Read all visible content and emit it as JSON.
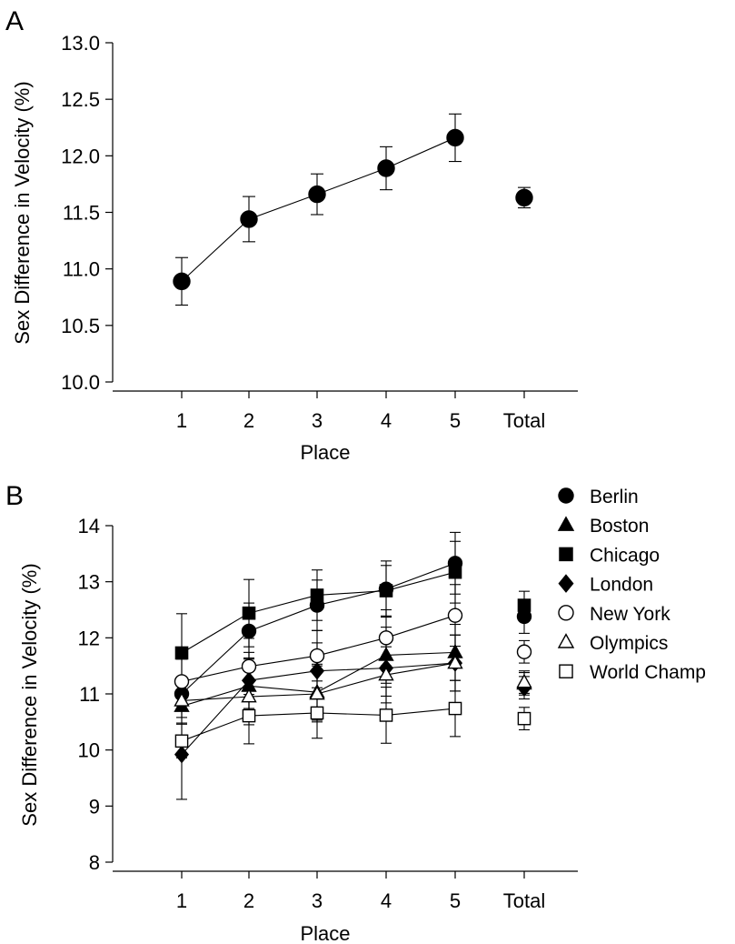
{
  "chart_data": [
    {
      "panel": "A",
      "type": "scatter",
      "xlabel": "Place",
      "ylabel": "Sex Difference in Velocity (%)",
      "categories": [
        "1",
        "2",
        "3",
        "4",
        "5",
        "Total"
      ],
      "ylim": [
        10.0,
        13.0
      ],
      "yticks": [
        "10.0",
        "10.5",
        "11.0",
        "11.5",
        "12.0",
        "12.5",
        "13.0"
      ],
      "series": [
        {
          "marker": "circle-filled",
          "values": [
            10.89,
            11.44,
            11.66,
            11.89,
            12.16,
            11.63
          ],
          "errors": [
            0.21,
            0.2,
            0.18,
            0.19,
            0.21,
            0.09
          ],
          "connect_through": 5
        }
      ]
    },
    {
      "panel": "B",
      "type": "line",
      "xlabel": "Place",
      "ylabel": "Sex Difference in Velocity (%)",
      "categories": [
        "1",
        "2",
        "3",
        "4",
        "5",
        "Total"
      ],
      "ylim": [
        8,
        14
      ],
      "yticks": [
        "8",
        "9",
        "10",
        "11",
        "12",
        "13",
        "14"
      ],
      "legend_position": "right",
      "series": [
        {
          "name": "Berlin",
          "marker": "circle-filled",
          "values": [
            11.0,
            12.12,
            12.58,
            12.87,
            13.33,
            12.38
          ],
          "errors": [
            0.3,
            0.5,
            0.45,
            0.5,
            0.55,
            0.3
          ]
        },
        {
          "name": "Boston",
          "marker": "triangle-filled",
          "values": [
            10.78,
            11.14,
            11.03,
            11.69,
            11.74,
            11.18
          ],
          "errors": [
            0.3,
            0.5,
            0.5,
            0.5,
            0.5,
            0.2
          ]
        },
        {
          "name": "Chicago",
          "marker": "square-filled",
          "values": [
            11.73,
            12.44,
            12.76,
            12.84,
            13.17,
            12.58
          ],
          "errors": [
            0.7,
            0.6,
            0.45,
            0.45,
            0.55,
            0.25
          ]
        },
        {
          "name": "London",
          "marker": "diamond-filled",
          "values": [
            9.92,
            11.24,
            11.41,
            11.46,
            11.55,
            11.11
          ],
          "errors": [
            0.8,
            0.5,
            0.5,
            0.5,
            0.5,
            0.2
          ]
        },
        {
          "name": "New York",
          "marker": "circle-open",
          "values": [
            11.22,
            11.49,
            11.68,
            12.0,
            12.4,
            11.75
          ],
          "errors": [
            0.4,
            0.5,
            0.45,
            0.5,
            0.55,
            0.2
          ]
        },
        {
          "name": "Olympics",
          "marker": "triangle-open",
          "values": [
            10.88,
            10.95,
            11.0,
            11.34,
            11.55,
            11.21
          ],
          "errors": [
            0.3,
            0.5,
            0.5,
            0.5,
            0.5,
            0.2
          ]
        },
        {
          "name": "World Champ",
          "marker": "square-open",
          "values": [
            10.16,
            10.61,
            10.66,
            10.62,
            10.74,
            10.56
          ],
          "errors": [
            0.3,
            0.5,
            0.45,
            0.5,
            0.5,
            0.2
          ]
        }
      ]
    }
  ]
}
